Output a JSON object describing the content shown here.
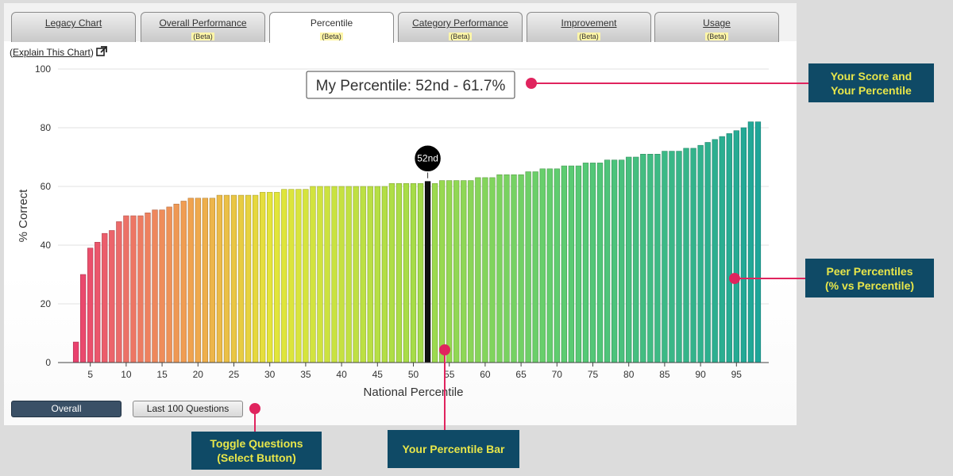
{
  "tabs": [
    {
      "label": "Legacy Chart",
      "beta": ""
    },
    {
      "label": "Overall Performance",
      "beta": "(Beta)"
    },
    {
      "label": "Percentile",
      "beta": "(Beta)"
    },
    {
      "label": "Category Performance",
      "beta": "(Beta)"
    },
    {
      "label": "Improvement",
      "beta": "(Beta)"
    },
    {
      "label": "Usage",
      "beta": "(Beta)"
    }
  ],
  "active_tab": "Percentile",
  "explain": {
    "open_paren": "(",
    "link": "Explain This Chart",
    "close_paren": ")"
  },
  "chart_data": {
    "type": "bar",
    "title": "My Percentile: 52nd - 61.7%",
    "marker_label": "52nd",
    "highlight_percentile": 52,
    "xlabel": "National Percentile",
    "ylabel": "% Correct",
    "ylim": [
      0,
      100
    ],
    "yticks": [
      0,
      20,
      40,
      60,
      80,
      100
    ],
    "xlim": [
      1,
      99
    ],
    "xticks": [
      5,
      10,
      15,
      20,
      25,
      30,
      35,
      40,
      45,
      50,
      55,
      60,
      65,
      70,
      75,
      80,
      85,
      90,
      95
    ],
    "x": [
      1,
      2,
      3,
      4,
      5,
      6,
      7,
      8,
      9,
      10,
      11,
      12,
      13,
      14,
      15,
      16,
      17,
      18,
      19,
      20,
      21,
      22,
      23,
      24,
      25,
      26,
      27,
      28,
      29,
      30,
      31,
      32,
      33,
      34,
      35,
      36,
      37,
      38,
      39,
      40,
      41,
      42,
      43,
      44,
      45,
      46,
      47,
      48,
      49,
      50,
      51,
      52,
      53,
      54,
      55,
      56,
      57,
      58,
      59,
      60,
      61,
      62,
      63,
      64,
      65,
      66,
      67,
      68,
      69,
      70,
      71,
      72,
      73,
      74,
      75,
      76,
      77,
      78,
      79,
      80,
      81,
      82,
      83,
      84,
      85,
      86,
      87,
      88,
      89,
      90,
      91,
      92,
      93,
      94,
      95,
      96,
      97,
      98,
      99
    ],
    "values": [
      0,
      0,
      7,
      30,
      39,
      41,
      44,
      45,
      48,
      50,
      50,
      50,
      51,
      52,
      52,
      53,
      54,
      55,
      56,
      56,
      56,
      56,
      57,
      57,
      57,
      57,
      57,
      57,
      58,
      58,
      58,
      59,
      59,
      59,
      59,
      60,
      60,
      60,
      60,
      60,
      60,
      60,
      60,
      60,
      60,
      60,
      61,
      61,
      61,
      61,
      61,
      61.7,
      61,
      62,
      62,
      62,
      62,
      62,
      63,
      63,
      63,
      64,
      64,
      64,
      64,
      65,
      65,
      66,
      66,
      66,
      67,
      67,
      67,
      68,
      68,
      68,
      69,
      69,
      69,
      70,
      70,
      71,
      71,
      71,
      72,
      72,
      72,
      73,
      73,
      74,
      75,
      76,
      77,
      78,
      79,
      80,
      82,
      82,
      0
    ],
    "colors": {
      "highlight": "#111111",
      "low": "#e8336f",
      "mid": "#e4e63a",
      "high": "#1ca59a"
    }
  },
  "buttons": {
    "overall": "Overall",
    "last100": "Last 100 Questions"
  },
  "callouts": {
    "score": [
      "Your Score and",
      "Your Percentile"
    ],
    "peer": [
      "Peer Percentiles",
      "(% vs Percentile)"
    ],
    "toggle": [
      "Toggle Questions",
      "(Select Button)"
    ],
    "bar": [
      "Your Percentile Bar"
    ]
  },
  "theme": {
    "callout_bg": "#0f4a66",
    "callout_text": "#e8e64a",
    "pointer": "#e0245e"
  }
}
